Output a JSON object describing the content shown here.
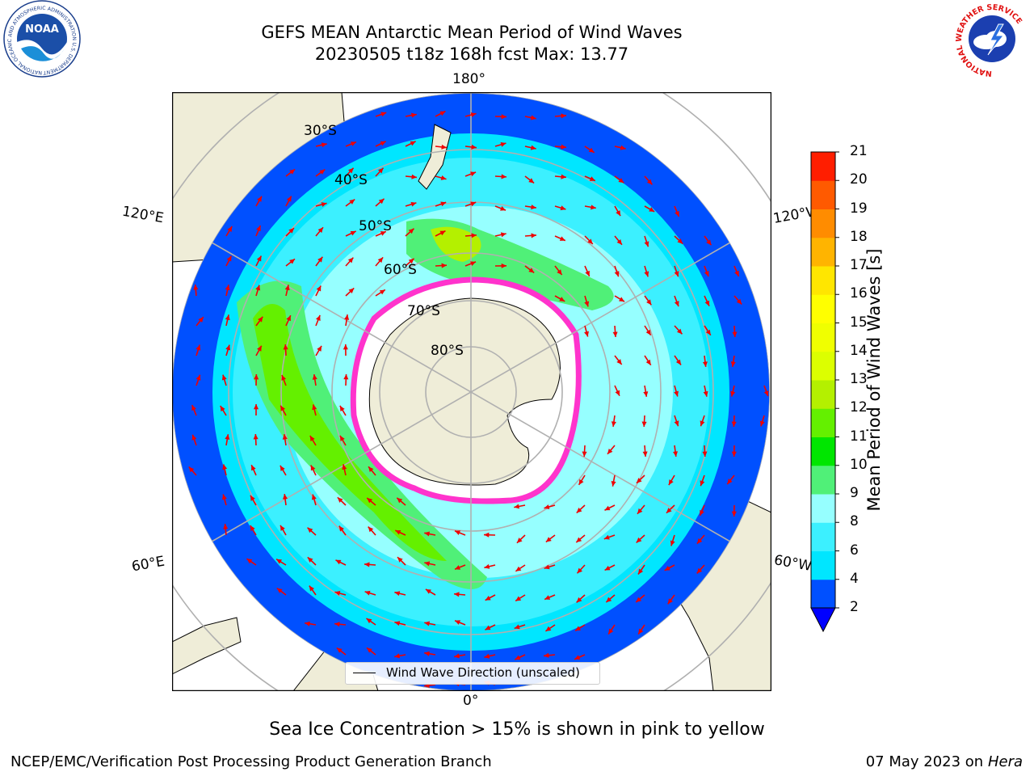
{
  "header": {
    "title_line1": "GEFS MEAN Antarctic Mean Period of Wind Waves",
    "title_line2": "20230505 t18z 168h fcst   Max: 13.77",
    "left_logo": "noara-logo",
    "left_logo_text": "NATIONAL OCEANIC AND ATMOSPHERIC ADMINISTRATION U.S. DEPARTMENT OF COMMERCE",
    "left_logo_word": "NOAA",
    "right_logo": "nws-logo",
    "right_logo_text": "NATIONAL WEATHER SERVICE"
  },
  "map": {
    "projection": "south-polar-stereographic",
    "longitude_labels": {
      "top": "180°",
      "bottom": "0°",
      "upper_left": "120°E",
      "upper_right": "120°W",
      "lower_left": "60°E",
      "lower_right": "60°W"
    },
    "latitude_labels": [
      "30°S",
      "40°S",
      "50°S",
      "60°S",
      "70°S",
      "80°S"
    ],
    "colors": {
      "land": "#efedd8",
      "ice": "#ffffff",
      "ice_edge_pink": "#ff33cc",
      "arrow": "#ee0000",
      "gridline": "#b0b0b0",
      "coast": "#000000"
    },
    "legend_label": "Wind Wave Direction (unscaled)"
  },
  "colorbar": {
    "label": "Mean Period of Wind Waves [s]",
    "ticks": [
      "2",
      "4",
      "6",
      "8",
      "9",
      "10",
      "11",
      "12",
      "13",
      "14",
      "15",
      "16",
      "17",
      "18",
      "19",
      "20",
      "21"
    ],
    "colors": [
      "#0050ff",
      "#00e6ff",
      "#3cf0ff",
      "#96ffff",
      "#50f078",
      "#00e600",
      "#64f000",
      "#b4f000",
      "#dcff00",
      "#f0ff00",
      "#ffff00",
      "#ffe600",
      "#ffb400",
      "#ff8c00",
      "#ff5a00",
      "#ff1e00"
    ],
    "extend_color": "#0000ff"
  },
  "subtitle": "Sea Ice Concentration > 15% is shown in pink to yellow",
  "footer": {
    "left": "NCEP/EMC/Verification Post Processing Product Generation Branch",
    "right_date": "07 May 2023 on",
    "right_host": "Hera"
  }
}
